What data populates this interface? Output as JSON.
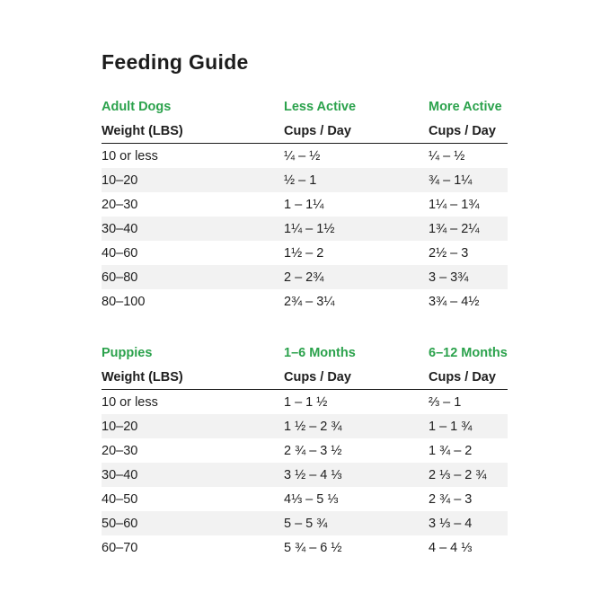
{
  "title": "Feeding Guide",
  "colors": {
    "accent": "#2ba24c",
    "text": "#1e1e1e",
    "stripe": "#f2f2f2"
  },
  "tables": [
    {
      "section": [
        "Adult Dogs",
        "Less Active",
        "More Active"
      ],
      "header": [
        "Weight (LBS)",
        "Cups / Day",
        "Cups / Day"
      ],
      "rows": [
        [
          "10 or less",
          "¼ – ½",
          "¼ – ½"
        ],
        [
          "10–20",
          "½ – 1",
          "¾ – 1¼"
        ],
        [
          "20–30",
          "1 – 1¼",
          "1¼ – 1¾"
        ],
        [
          "30–40",
          "1¼ – 1½",
          "1¾ – 2¼"
        ],
        [
          "40–60",
          "1½ – 2",
          "2½ – 3"
        ],
        [
          "60–80",
          "2 – 2¾",
          "3 – 3¾"
        ],
        [
          "80–100",
          "2¾ – 3¼",
          "3¾ – 4½"
        ]
      ]
    },
    {
      "section": [
        "Puppies",
        "1–6 Months",
        "6–12 Months"
      ],
      "header": [
        "Weight (LBS)",
        "Cups / Day",
        "Cups / Day"
      ],
      "rows": [
        [
          "10 or less",
          "1 – 1 ½",
          "⅔ – 1"
        ],
        [
          "10–20",
          "1 ½ – 2 ¾",
          "1 – 1 ¾"
        ],
        [
          "20–30",
          "2 ¾ – 3 ½",
          "1 ¾ – 2"
        ],
        [
          "30–40",
          "3 ½ – 4 ⅓",
          "2 ⅓ – 2 ¾"
        ],
        [
          "40–50",
          "4⅓ – 5 ⅓",
          "2 ¾ – 3"
        ],
        [
          "50–60",
          "5 – 5 ¾",
          "3 ⅓ – 4"
        ],
        [
          "60–70",
          "5 ¾ – 6 ½",
          "4 – 4 ⅓"
        ]
      ]
    }
  ]
}
